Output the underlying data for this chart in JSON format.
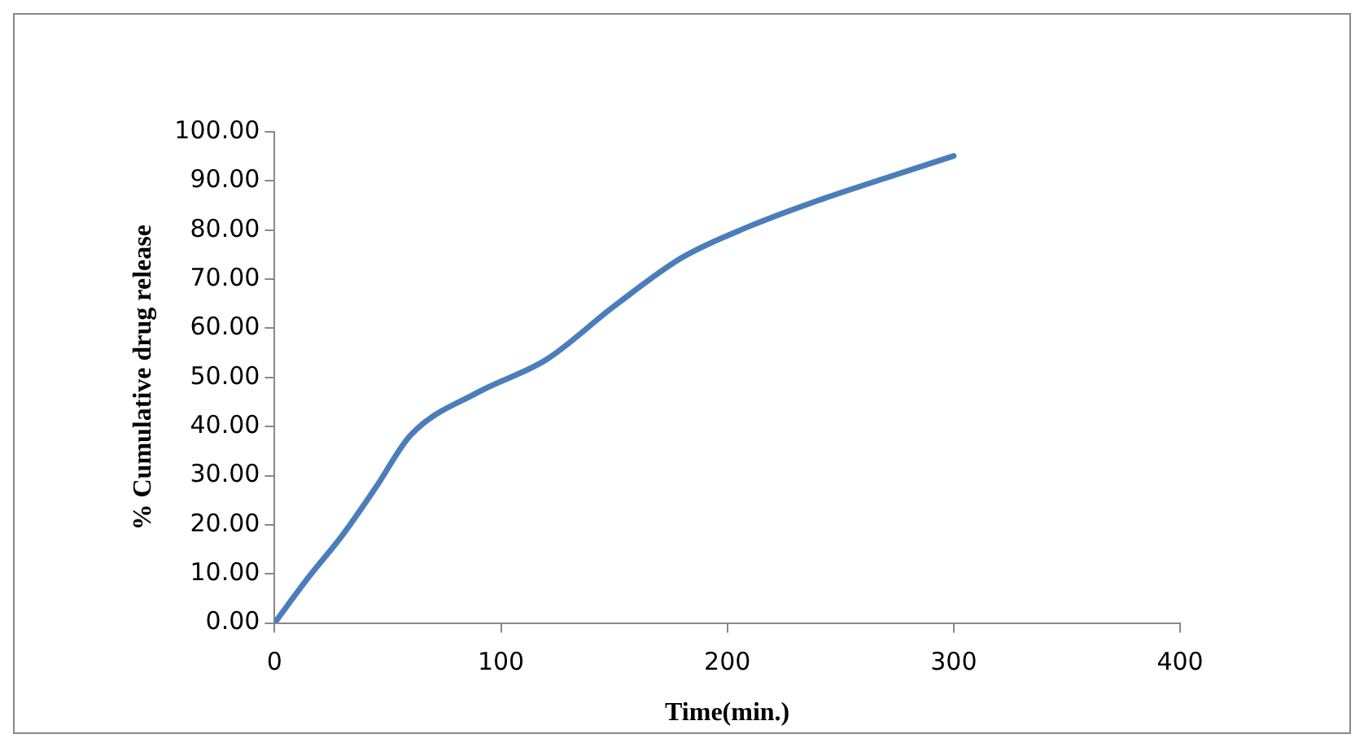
{
  "chart_data": {
    "type": "line",
    "xlabel": "Time(min.)",
    "ylabel": "% Cumulative drug release",
    "x": [
      0,
      15,
      30,
      45,
      60,
      90,
      120,
      150,
      180,
      210,
      240,
      270,
      300
    ],
    "series": [
      {
        "color": "#4a7ebb",
        "values": [
          0,
          9.3,
          17.9,
          27.8,
          38.2,
          47,
          53.6,
          64.5,
          74.4,
          80.8,
          86,
          90.6,
          95.1
        ]
      }
    ],
    "xlim": [
      0,
      400
    ],
    "xticks": [
      0,
      100,
      200,
      300,
      400
    ],
    "ylim": [
      0,
      100
    ],
    "yticks": [
      {
        "value": 0,
        "label": "0.00"
      },
      {
        "value": 10,
        "label": "10.00"
      },
      {
        "value": 20,
        "label": "20.00"
      },
      {
        "value": 30,
        "label": "30.00"
      },
      {
        "value": 40,
        "label": "40.00"
      },
      {
        "value": 50,
        "label": "50.00"
      },
      {
        "value": 60,
        "label": "60.00"
      },
      {
        "value": 70,
        "label": "70.00"
      },
      {
        "value": 80,
        "label": "80.00"
      },
      {
        "value": 90,
        "label": "90.00"
      },
      {
        "value": 100,
        "label": "100.00"
      }
    ],
    "grid": false,
    "legend": false,
    "marker": "none",
    "line_style": "solid"
  }
}
